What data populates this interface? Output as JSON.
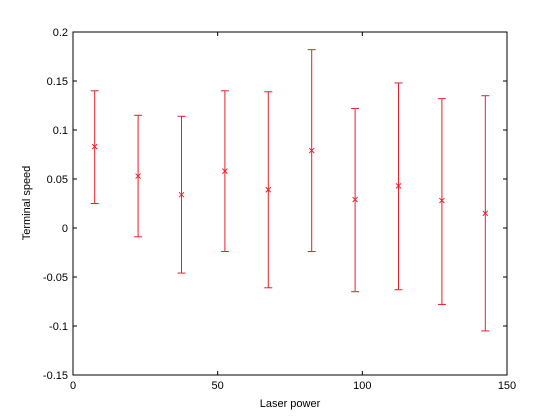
{
  "chart_data": {
    "type": "scatter",
    "title": "",
    "xlabel": "Laser power",
    "ylabel": "Terminal speed",
    "xlim": [
      0,
      150
    ],
    "ylim": [
      -0.15,
      0.2
    ],
    "xticks": [
      0,
      50,
      100,
      150
    ],
    "xtick_labels": [
      "0",
      "50",
      "100",
      "150"
    ],
    "yticks": [
      -0.15,
      -0.1,
      -0.05,
      0,
      0.05,
      0.1,
      0.15,
      0.2
    ],
    "ytick_labels": [
      "-0.15",
      "-0.1",
      "-0.05",
      "0",
      "0.05",
      "0.1",
      "0.15",
      "0.2"
    ],
    "grid": false,
    "legend": "none",
    "marker": "x",
    "color": "#e8202a",
    "series": [
      {
        "x": [
          7.5,
          22.5,
          37.5,
          52.5,
          67.5,
          82.5,
          97.5,
          112.5,
          127.5,
          142.5
        ],
        "y": [
          0.083,
          0.053,
          0.034,
          0.058,
          0.039,
          0.079,
          0.029,
          0.043,
          0.028,
          0.015
        ],
        "lower": [
          0.025,
          -0.009,
          -0.046,
          -0.024,
          -0.061,
          -0.024,
          -0.065,
          -0.063,
          -0.078,
          -0.105
        ],
        "upper": [
          0.14,
          0.115,
          0.114,
          0.14,
          0.139,
          0.182,
          0.122,
          0.148,
          0.132,
          0.135
        ]
      }
    ]
  }
}
